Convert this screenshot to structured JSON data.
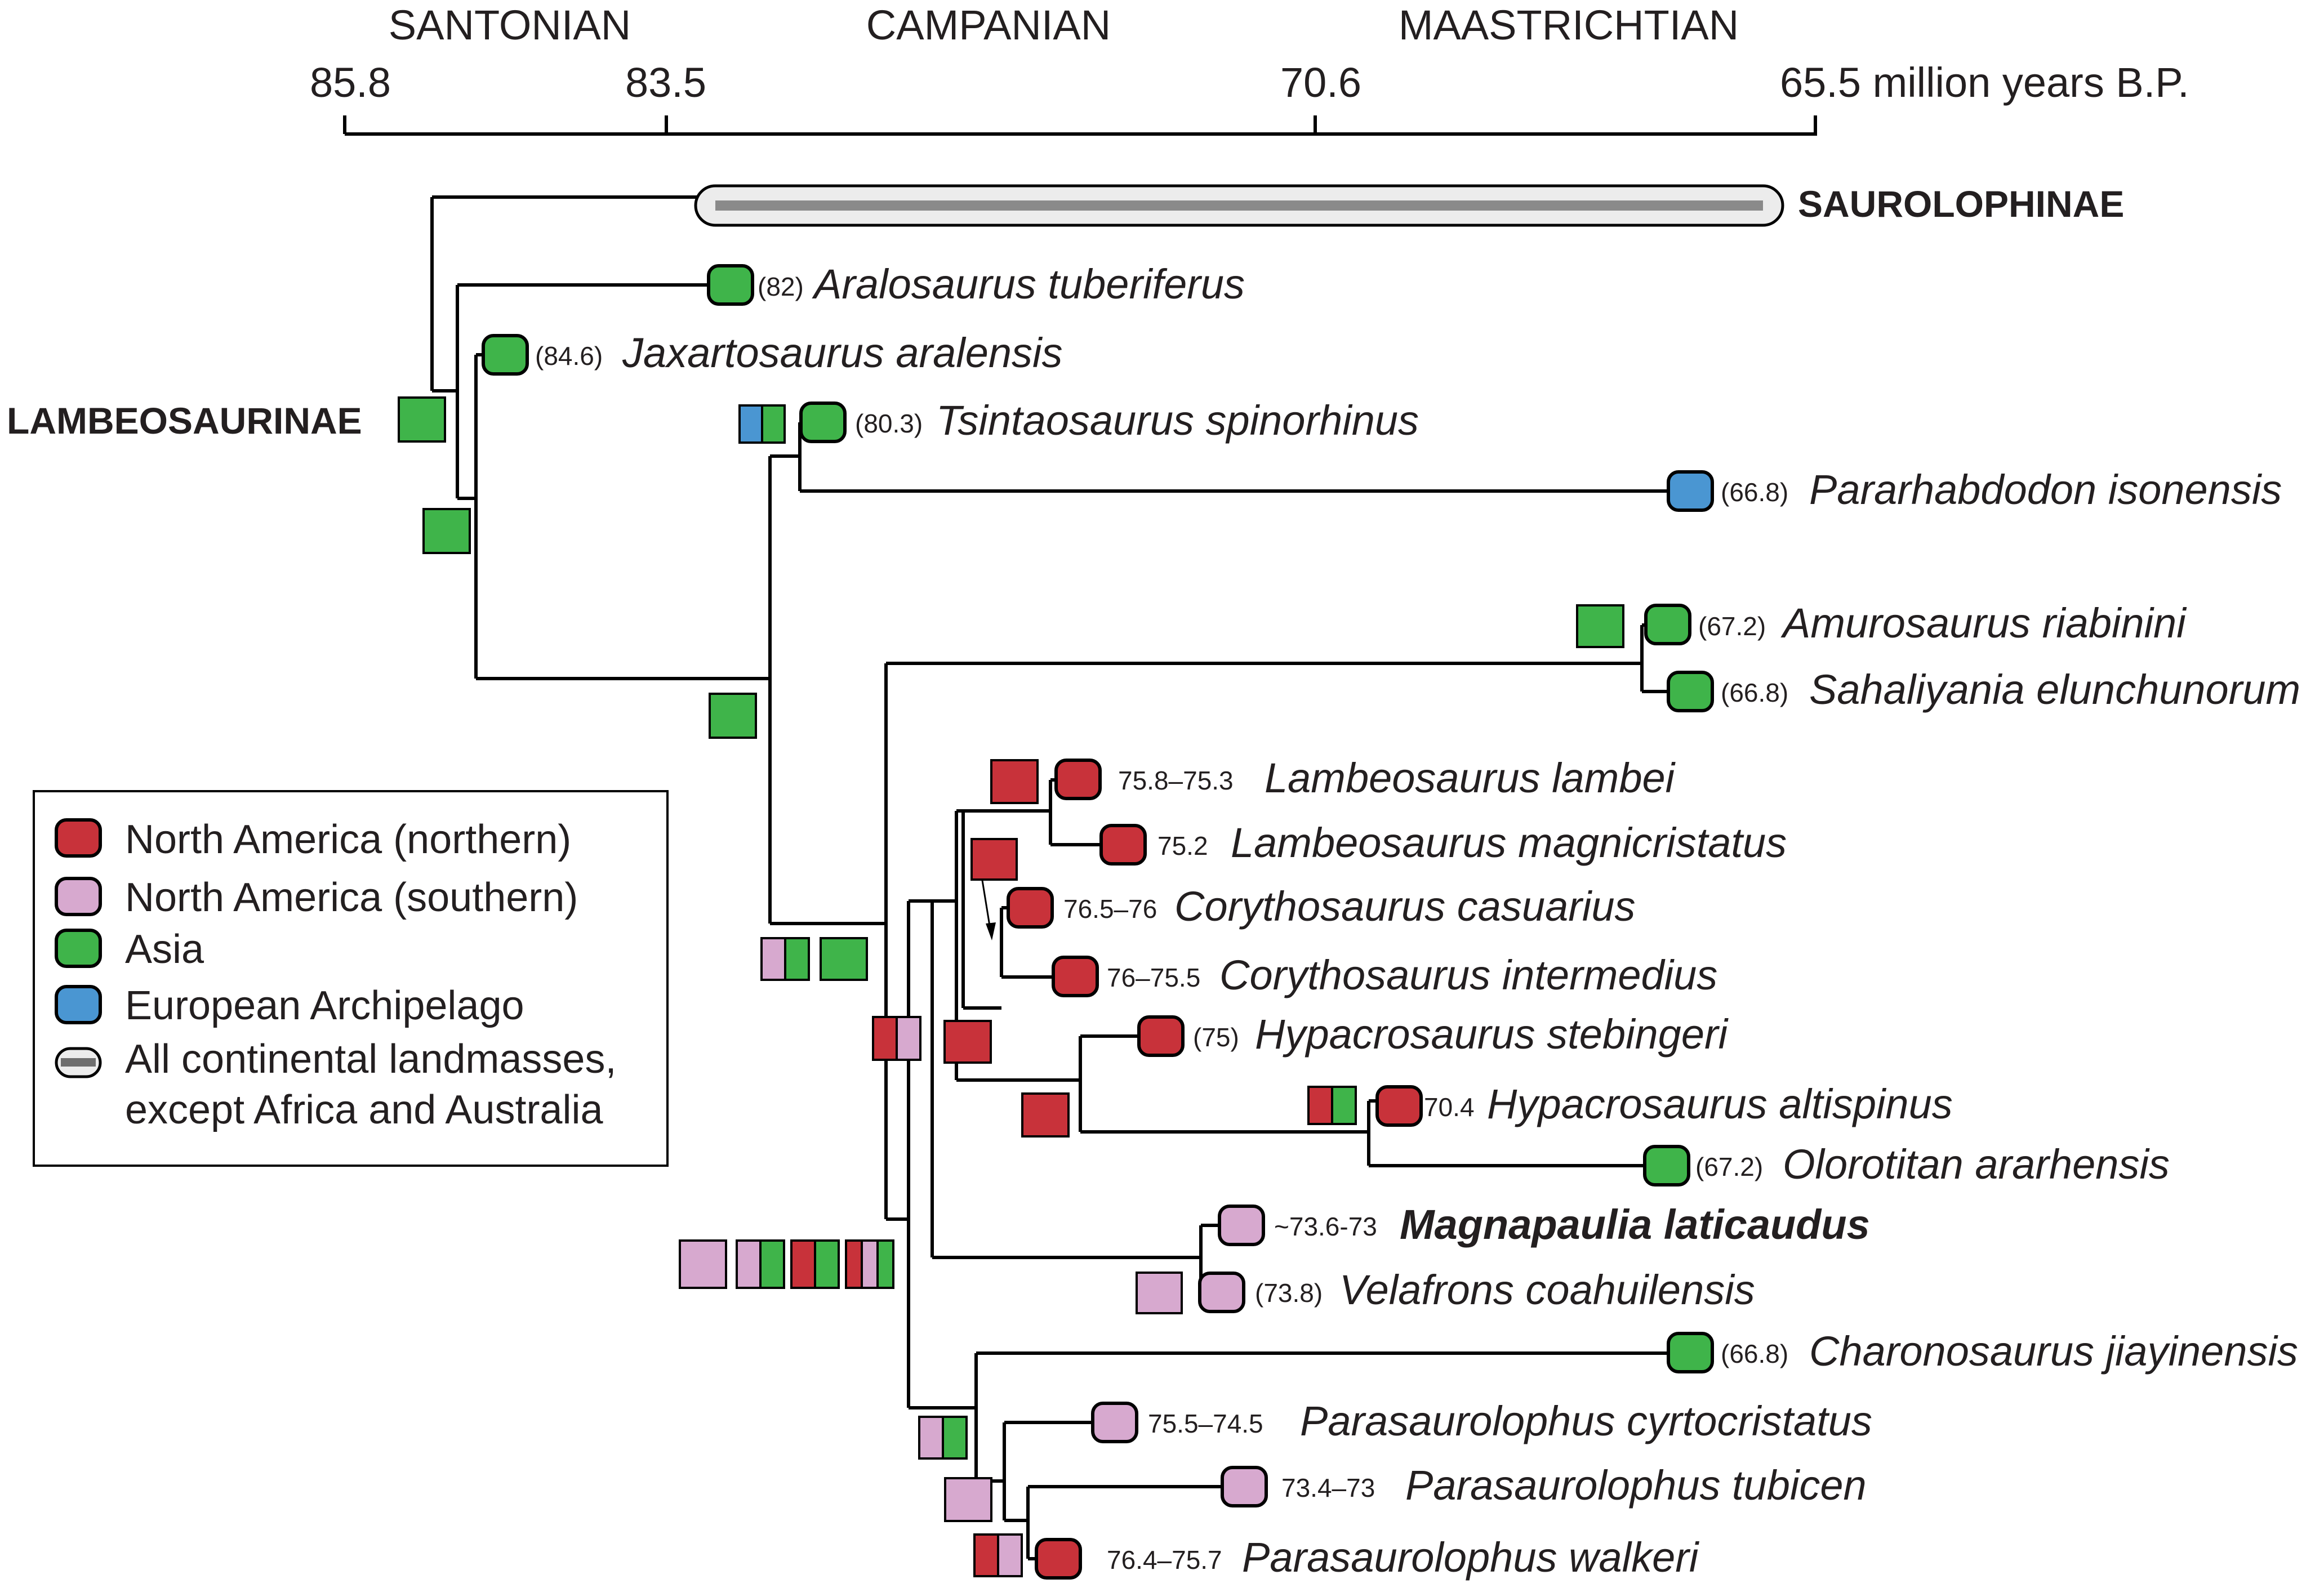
{
  "colors": {
    "north_america_northern": "#c8323a",
    "north_america_southern": "#d7a9cf",
    "asia": "#3fb44a",
    "european_archipelago": "#4a96d2",
    "all_landmasses_fill": "#ececec",
    "all_landmasses_bar": "#8a8a8a",
    "line": "#000000"
  },
  "time_axis": {
    "periods": [
      "SANTONIAN",
      "CAMPANIAN",
      "MAASTRICHTIAN"
    ],
    "ticks": [
      "85.8",
      "83.5",
      "70.6",
      "65.5 million years B.P."
    ]
  },
  "clades": {
    "saurolophinae": "SAUROLOPHINAE",
    "lambeosaurinae": "LAMBEOSAURINAE"
  },
  "taxa": [
    {
      "age": "(82)",
      "name": "Aralosaurus tuberiferus",
      "region": "asia"
    },
    {
      "age": "(84.6)",
      "name": "Jaxartosaurus aralensis",
      "region": "asia"
    },
    {
      "age": "(80.3)",
      "name": "Tsintaosaurus spinorhinus",
      "region": "asia"
    },
    {
      "age": "(66.8)",
      "name": "Pararhabdodon isonensis",
      "region": "european_archipelago"
    },
    {
      "age": "(67.2)",
      "name": "Amurosaurus riabinini",
      "region": "asia"
    },
    {
      "age": "(66.8)",
      "name": "Sahaliyania elunchunorum",
      "region": "asia"
    },
    {
      "age": "75.8–75.3",
      "name": "Lambeosaurus lambei",
      "region": "north_america_northern"
    },
    {
      "age": "75.2",
      "name": "Lambeosaurus magnicristatus",
      "region": "north_america_northern"
    },
    {
      "age": "76.5–76",
      "name": "Corythosaurus casuarius",
      "region": "north_america_northern"
    },
    {
      "age": "76–75.5",
      "name": "Corythosaurus intermedius",
      "region": "north_america_northern"
    },
    {
      "age": "(75)",
      "name": "Hypacrosaurus stebingeri",
      "region": "north_america_northern"
    },
    {
      "age": "70.4",
      "name": "Hypacrosaurus altispinus",
      "region": "north_america_northern"
    },
    {
      "age": "(67.2)",
      "name": "Olorotitan ararhensis",
      "region": "asia"
    },
    {
      "age": "~73.6-73",
      "name": "Magnapaulia laticaudus",
      "region": "north_america_southern"
    },
    {
      "age": "(73.8)",
      "name": "Velafrons coahuilensis",
      "region": "north_america_southern"
    },
    {
      "age": "(66.8)",
      "name": "Charonosaurus jiayinensis",
      "region": "asia"
    },
    {
      "age": "75.5–74.5",
      "name": "Parasaurolophus cyrtocristatus",
      "region": "north_america_southern"
    },
    {
      "age": "73.4–73",
      "name": "Parasaurolophus tubicen",
      "region": "north_america_southern"
    },
    {
      "age": "76.4–75.7",
      "name": "Parasaurolophus walkeri",
      "region": "north_america_northern"
    }
  ],
  "legend": {
    "items": [
      {
        "label": "North America (northern)",
        "region": "north_america_northern"
      },
      {
        "label": "North America (southern)",
        "region": "north_america_southern"
      },
      {
        "label": "Asia",
        "region": "asia"
      },
      {
        "label": "European Archipelago",
        "region": "european_archipelago"
      },
      {
        "label_line1": "All continental landmasses,",
        "label_line2": "except Africa and Australia",
        "region": "all_landmasses"
      }
    ]
  }
}
